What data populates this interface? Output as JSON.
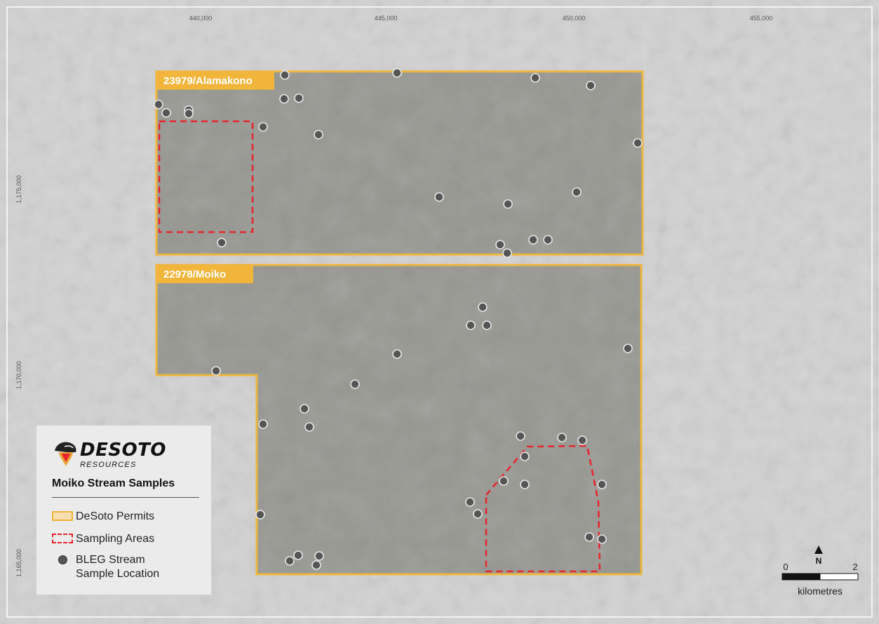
{
  "map": {
    "grid_easting_labels": [
      "440,000",
      "445,000",
      "450,000",
      "455,000"
    ],
    "grid_northing_labels": [
      "1,175,000",
      "1,170,000",
      "1,165,000"
    ],
    "colors": {
      "permit_outline": "#f0b53a",
      "permit_fill": "#8b8b85",
      "background": "#d2d2d2",
      "sampling_area": "#e8242a",
      "sample_dot": "#555555"
    }
  },
  "permits": [
    {
      "name": "23979/Alamakono"
    },
    {
      "name": "22978/Moiko"
    }
  ],
  "legend": {
    "brand_name": "DESOTO",
    "brand_sub": "RESOURCES",
    "title": "Moiko Stream Samples",
    "items": [
      {
        "label": "DeSoto Permits",
        "symbol": "permit-swatch"
      },
      {
        "label": "Sampling Areas",
        "symbol": "dashed-red-swatch"
      },
      {
        "label": "BLEG Stream Sample Location",
        "symbol": "grey-dot"
      }
    ],
    "items_lines": {
      "bleg_line1": "BLEG Stream",
      "bleg_line2": "Sample Location"
    }
  },
  "scalebar": {
    "north_label": "N",
    "min_label": "0",
    "max_label": "2",
    "unit_label": "kilometres"
  }
}
